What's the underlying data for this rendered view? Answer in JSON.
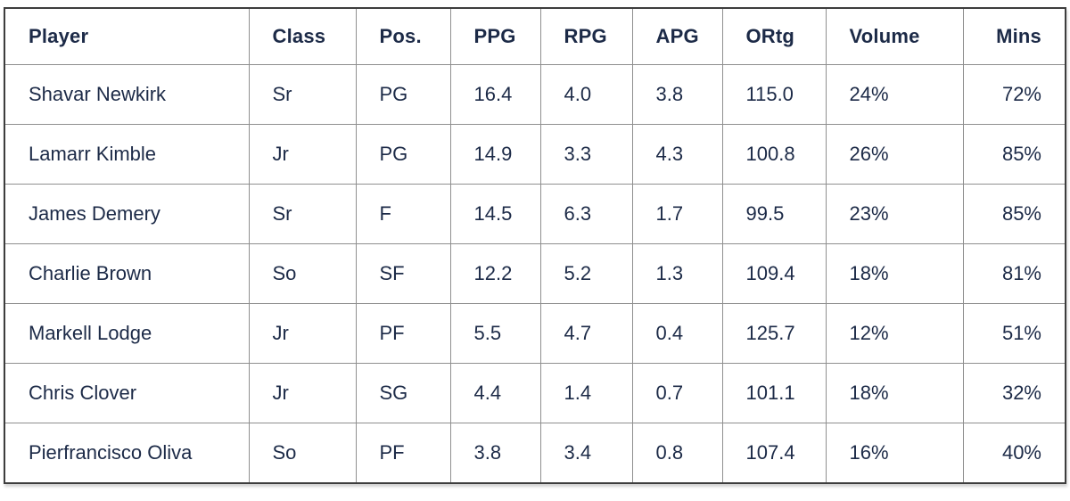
{
  "chart_data": {
    "type": "table",
    "columns": [
      "Player",
      "Class",
      "Pos.",
      "PPG",
      "RPG",
      "APG",
      "ORtg",
      "Volume",
      "Mins"
    ],
    "column_align": [
      "left",
      "left",
      "left",
      "left",
      "left",
      "left",
      "left",
      "left",
      "right"
    ],
    "rows": [
      [
        "Shavar Newkirk",
        "Sr",
        "PG",
        "16.4",
        "4.0",
        "3.8",
        "115.0",
        "24%",
        "72%"
      ],
      [
        "Lamarr Kimble",
        "Jr",
        "PG",
        "14.9",
        "3.3",
        "4.3",
        "100.8",
        "26%",
        "85%"
      ],
      [
        "James Demery",
        "Sr",
        "F",
        "14.5",
        "6.3",
        "1.7",
        "99.5",
        "23%",
        "85%"
      ],
      [
        "Charlie Brown",
        "So",
        "SF",
        "12.2",
        "5.2",
        "1.3",
        "109.4",
        "18%",
        "81%"
      ],
      [
        "Markell Lodge",
        "Jr",
        "PF",
        "5.5",
        "4.7",
        "0.4",
        "125.7",
        "12%",
        "51%"
      ],
      [
        "Chris Clover",
        "Jr",
        "SG",
        "4.4",
        "1.4",
        "0.7",
        "101.1",
        "18%",
        "32%"
      ],
      [
        "Pierfrancisco Oliva",
        "So",
        "PF",
        "3.8",
        "3.4",
        "0.8",
        "107.4",
        "16%",
        "40%"
      ]
    ]
  },
  "colors": {
    "text": "#1c2a47",
    "grid_line": "#8f8f8f",
    "outer_border": "#3d3d3d",
    "background": "#ffffff"
  }
}
